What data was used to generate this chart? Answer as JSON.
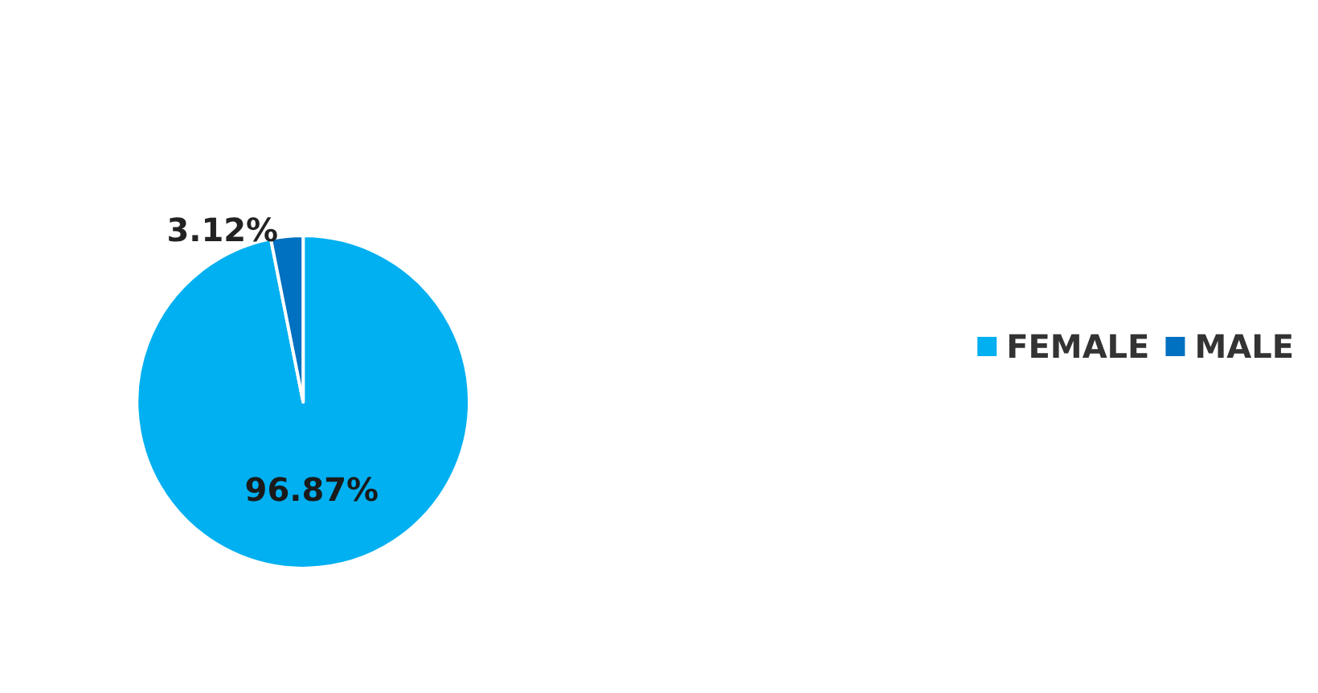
{
  "chart_data": {
    "type": "pie",
    "categories": [
      "FEMALE",
      "MALE"
    ],
    "values": [
      96.87,
      3.12
    ],
    "colors": [
      "#00b0f0",
      "#0070c0"
    ],
    "value_labels": [
      "96.87%",
      "3.12%"
    ],
    "legend": "right"
  }
}
